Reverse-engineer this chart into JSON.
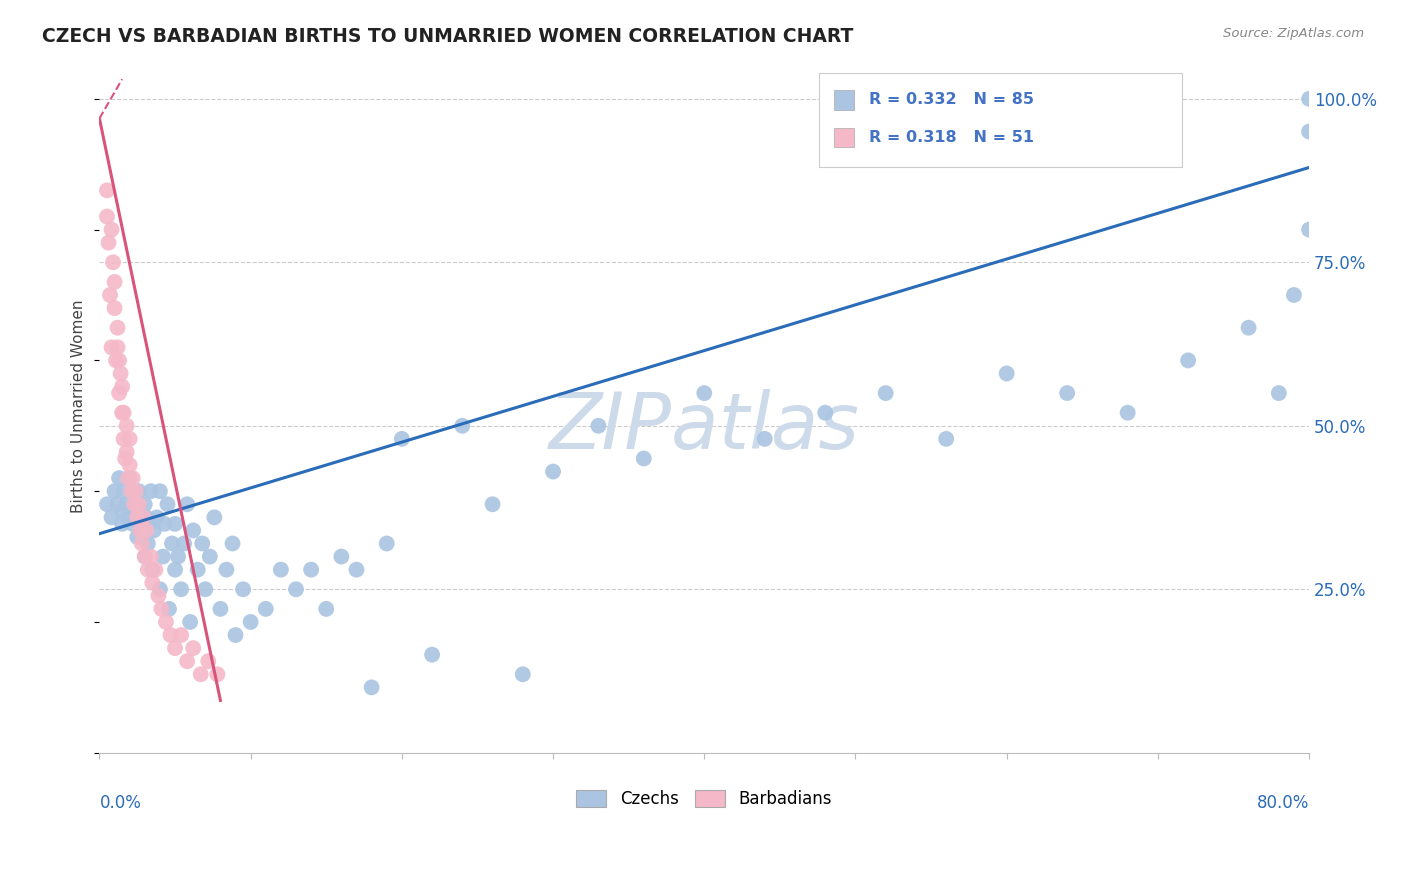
{
  "title": "CZECH VS BARBADIAN BIRTHS TO UNMARRIED WOMEN CORRELATION CHART",
  "source": "Source: ZipAtlas.com",
  "ylabel": "Births to Unmarried Women",
  "czech_R": 0.332,
  "czech_N": 85,
  "barbadian_R": 0.318,
  "barbadian_N": 51,
  "czech_color": "#aac4e2",
  "barbadian_color": "#f4b8c8",
  "trendline_blue": "#2b6cb8",
  "trendline_pink": "#d9547a",
  "watermark_color": "#cddaea",
  "legend_R_color": "#4472c4",
  "legend_text_color": "#222222",
  "xmin": 0.0,
  "xmax": 0.8,
  "ymin": 0.0,
  "ymax": 1.06,
  "czech_x": [
    0.005,
    0.008,
    0.01,
    0.012,
    0.013,
    0.015,
    0.015,
    0.016,
    0.018,
    0.019,
    0.02,
    0.021,
    0.022,
    0.023,
    0.025,
    0.025,
    0.026,
    0.028,
    0.03,
    0.03,
    0.031,
    0.032,
    0.033,
    0.034,
    0.035,
    0.036,
    0.038,
    0.04,
    0.04,
    0.042,
    0.043,
    0.045,
    0.046,
    0.048,
    0.05,
    0.05,
    0.052,
    0.054,
    0.056,
    0.058,
    0.06,
    0.062,
    0.065,
    0.068,
    0.07,
    0.073,
    0.076,
    0.08,
    0.084,
    0.088,
    0.09,
    0.095,
    0.1,
    0.11,
    0.12,
    0.13,
    0.14,
    0.15,
    0.16,
    0.17,
    0.18,
    0.19,
    0.2,
    0.22,
    0.24,
    0.26,
    0.28,
    0.3,
    0.33,
    0.36,
    0.4,
    0.44,
    0.48,
    0.52,
    0.56,
    0.6,
    0.64,
    0.68,
    0.72,
    0.76,
    0.78,
    0.79,
    0.8,
    0.8,
    0.8
  ],
  "czech_y": [
    0.38,
    0.36,
    0.4,
    0.38,
    0.42,
    0.35,
    0.37,
    0.4,
    0.38,
    0.36,
    0.42,
    0.4,
    0.35,
    0.37,
    0.33,
    0.38,
    0.4,
    0.35,
    0.3,
    0.38,
    0.36,
    0.32,
    0.35,
    0.4,
    0.28,
    0.34,
    0.36,
    0.25,
    0.4,
    0.3,
    0.35,
    0.38,
    0.22,
    0.32,
    0.28,
    0.35,
    0.3,
    0.25,
    0.32,
    0.38,
    0.2,
    0.34,
    0.28,
    0.32,
    0.25,
    0.3,
    0.36,
    0.22,
    0.28,
    0.32,
    0.18,
    0.25,
    0.2,
    0.22,
    0.28,
    0.25,
    0.28,
    0.22,
    0.3,
    0.28,
    0.1,
    0.32,
    0.48,
    0.15,
    0.5,
    0.38,
    0.12,
    0.43,
    0.5,
    0.45,
    0.55,
    0.48,
    0.52,
    0.55,
    0.48,
    0.58,
    0.55,
    0.52,
    0.6,
    0.65,
    0.55,
    0.7,
    0.8,
    0.95,
    1.0
  ],
  "barbadian_x": [
    0.005,
    0.005,
    0.006,
    0.007,
    0.008,
    0.008,
    0.009,
    0.01,
    0.01,
    0.011,
    0.012,
    0.012,
    0.013,
    0.013,
    0.014,
    0.015,
    0.015,
    0.016,
    0.016,
    0.017,
    0.018,
    0.018,
    0.019,
    0.02,
    0.02,
    0.021,
    0.022,
    0.023,
    0.024,
    0.025,
    0.026,
    0.027,
    0.028,
    0.029,
    0.03,
    0.031,
    0.032,
    0.034,
    0.035,
    0.037,
    0.039,
    0.041,
    0.044,
    0.047,
    0.05,
    0.054,
    0.058,
    0.062,
    0.067,
    0.072,
    0.078
  ],
  "barbadian_y": [
    0.82,
    0.86,
    0.78,
    0.7,
    0.8,
    0.62,
    0.75,
    0.68,
    0.72,
    0.6,
    0.62,
    0.65,
    0.55,
    0.6,
    0.58,
    0.52,
    0.56,
    0.48,
    0.52,
    0.45,
    0.5,
    0.46,
    0.42,
    0.44,
    0.48,
    0.4,
    0.42,
    0.38,
    0.4,
    0.36,
    0.38,
    0.34,
    0.32,
    0.36,
    0.3,
    0.34,
    0.28,
    0.3,
    0.26,
    0.28,
    0.24,
    0.22,
    0.2,
    0.18,
    0.16,
    0.18,
    0.14,
    0.16,
    0.12,
    0.14,
    0.12
  ],
  "czech_trend_x": [
    0.0,
    0.8
  ],
  "czech_trend_y": [
    0.335,
    0.895
  ],
  "barbadian_trend_x": [
    0.0,
    0.08
  ],
  "barbadian_trend_y": [
    0.97,
    0.08
  ]
}
